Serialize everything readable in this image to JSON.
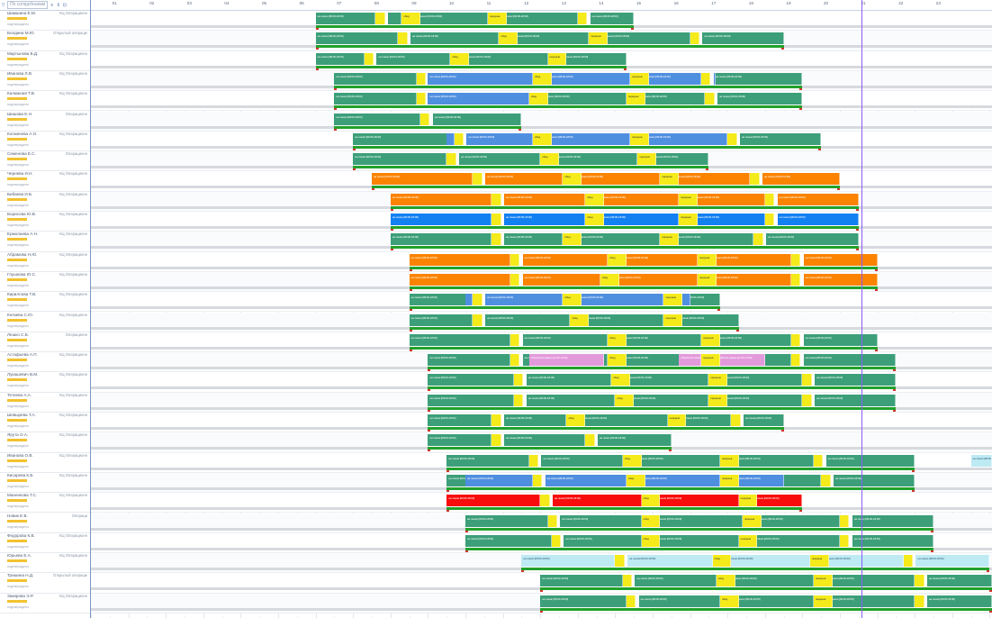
{
  "toolbar": {
    "filter_icon": "filter-icon",
    "group_select": "По сотрудникам",
    "buttons": [
      "x",
      "⇕",
      "⊡"
    ]
  },
  "timeline": {
    "hours": [
      "01",
      "02",
      "03",
      "04",
      "05",
      "06",
      "07",
      "08",
      "09",
      "10",
      "11",
      "12",
      "13",
      "14",
      "15",
      "16",
      "17",
      "18",
      "19",
      "20",
      "21",
      "22",
      "23"
    ]
  },
  "legend_colors": {
    "work_green": "#3c9f7a",
    "break_yellow": "#f5ea1a",
    "blue": "#4f8fe0",
    "orange": "#fb8300",
    "bright_blue": "#1380f2",
    "pink": "#e39adb",
    "red": "#f90c0c",
    "light_blue": "#bdeaf3",
    "schedule_green": "#22a12b",
    "now_line": "#8b5cf6"
  },
  "employees": [
    {
      "name": "Шамшина Е.М.",
      "dept": "КЦ Операционн",
      "note": "подтверждено"
    },
    {
      "name": "Болдина М.Ю.",
      "dept": "Открытый операционный отдел",
      "note": "подтверждено"
    },
    {
      "name": "Мартынова Б.Д.",
      "dept": "КЦ Операционн",
      "note": "подтверждено"
    },
    {
      "name": "Иванова Л.В.",
      "dept": "КЦ Операционн",
      "note": "подтверждено"
    },
    {
      "name": "Калюжная Т.В.",
      "dept": "КЦ Операционн",
      "note": "подтверждено"
    },
    {
      "name": "Шишова Е.Н.",
      "dept": "Операционн",
      "note": "подтверждено"
    },
    {
      "name": "Космачева А.О.",
      "dept": "КЦ Операционн",
      "note": "подтверждено"
    },
    {
      "name": "Семенова Е.С.",
      "dept": "Операционн",
      "note": "подтверждено"
    },
    {
      "name": "Чернева И.Н.",
      "dept": "КЦ Операционн",
      "note": "подтверждено"
    },
    {
      "name": "Бибаева И.Б.",
      "dept": "КЦ Операционн",
      "note": "подтверждено"
    },
    {
      "name": "Борисова Ю.В.",
      "dept": "КЦ Операционн",
      "note": "подтверждено"
    },
    {
      "name": "Ермолаева А.Н.",
      "dept": "КЦ Операционн",
      "note": "подтверждено"
    },
    {
      "name": "Абрамова Н.Ю.",
      "dept": "КЦ Операционн",
      "note": "подтверждено"
    },
    {
      "name": "Глушкова Ю.С.",
      "dept": "КЦ Операционн",
      "note": "подтверждено"
    },
    {
      "name": "Кириллова Т.В.",
      "dept": "КЦ Операционн",
      "note": "подтверждено"
    },
    {
      "name": "Князева С.Ю.",
      "dept": "КЦ Операционн",
      "note": "подтверждено"
    },
    {
      "name": "Лешко С.Б.",
      "dept": "Операционн",
      "note": "подтверждено"
    },
    {
      "name": "Астафьева А.П.",
      "dept": "КЦ Операционн",
      "note": "подтверждено"
    },
    {
      "name": "Лукашевич В.М.",
      "dept": "КЦ Операционн",
      "note": "подтверждено"
    },
    {
      "name": "Тетеева А.А.",
      "dept": "КЦ Операционн",
      "note": "подтверждено"
    },
    {
      "name": "Шевырева Т.А.",
      "dept": "КЦ Операционн",
      "note": "подтверждено"
    },
    {
      "name": "Ярута О.А.",
      "dept": "КЦ Операционн",
      "note": "подтверждено"
    },
    {
      "name": "Иванова О.В.",
      "dept": "КЦ Операционн",
      "note": "подтверждено"
    },
    {
      "name": "Кисарева К.Б.",
      "dept": "КЦ Операционн",
      "note": "подтверждено"
    },
    {
      "name": "Маненкова Т.С.",
      "dept": "КЦ Операционн",
      "note": "подтверждено"
    },
    {
      "name": "Новик Е.В.",
      "dept": "Операци",
      "note": "подтверждено"
    },
    {
      "name": "Федорова К.В.",
      "dept": "КЦ Операционн",
      "note": "подтверждено"
    },
    {
      "name": "Юрьева Е.А.",
      "dept": "КЦ Операционн",
      "note": "подтверждено"
    },
    {
      "name": "Тришина Н.Д.",
      "dept": "Открытый операционный отдел",
      "note": "подтверждено"
    },
    {
      "name": "Закирова Э.Р.",
      "dept": "КЦ Операционн",
      "note": "подтверждено"
    }
  ],
  "shifts": [
    {
      "row": 0,
      "start": 6.0,
      "end": 14.5,
      "c": "g",
      "b": [
        7.6,
        8.3,
        10.6,
        13.0
      ]
    },
    {
      "row": 1,
      "start": 6.0,
      "end": 18.5,
      "c": "g",
      "b": [
        8.2,
        10.9,
        13.3,
        16.0
      ]
    },
    {
      "row": 2,
      "start": 6.0,
      "end": 14.3,
      "c": "g",
      "b": [
        7.3,
        9.6,
        12.2
      ]
    },
    {
      "row": 3,
      "start": 6.5,
      "end": 19.0,
      "c": "g",
      "m": [
        [
          9.0,
          16.5,
          "b"
        ]
      ],
      "b": [
        8.7,
        11.8,
        14.4,
        16.3
      ]
    },
    {
      "row": 4,
      "start": 6.5,
      "end": 19.0,
      "c": "g",
      "m": [
        [
          9.0,
          11.9,
          "b"
        ]
      ],
      "b": [
        8.7,
        11.7,
        14.3,
        16.4
      ]
    },
    {
      "row": 5,
      "start": 6.5,
      "end": 11.5,
      "c": "g",
      "b": [
        8.8
      ]
    },
    {
      "row": 6,
      "start": 7.0,
      "end": 19.5,
      "c": "g",
      "m": [
        [
          9.5,
          17.0,
          "b"
        ]
      ],
      "b": [
        9.7,
        11.8,
        14.4,
        17.0
      ]
    },
    {
      "row": 7,
      "start": 7.0,
      "end": 16.5,
      "c": "g",
      "b": [
        9.5,
        12.0,
        14.6
      ]
    },
    {
      "row": 8,
      "start": 7.5,
      "end": 20.0,
      "c": "o",
      "b": [
        10.2,
        12.6,
        15.2,
        17.6
      ]
    },
    {
      "row": 9,
      "start": 8.0,
      "end": 20.5,
      "c": "o",
      "b": [
        10.7,
        13.2,
        15.7,
        18.0
      ]
    },
    {
      "row": 10,
      "start": 8.0,
      "end": 20.5,
      "c": "bb",
      "b": [
        10.7,
        13.2,
        15.7,
        18.0
      ]
    },
    {
      "row": 11,
      "start": 8.0,
      "end": 20.5,
      "c": "g",
      "b": [
        10.7,
        12.6,
        15.2,
        17.7
      ]
    },
    {
      "row": 12,
      "start": 8.5,
      "end": 21.0,
      "c": "o",
      "b": [
        11.2,
        13.8,
        16.2,
        18.7
      ]
    },
    {
      "row": 13,
      "start": 8.5,
      "end": 21.0,
      "c": "o",
      "b": [
        11.2,
        13.6,
        16.2,
        18.7
      ]
    },
    {
      "row": 14,
      "start": 8.5,
      "end": 16.8,
      "c": "g",
      "m": [
        [
          10.0,
          16.0,
          "b"
        ]
      ],
      "b": [
        10.2,
        12.6,
        15.3
      ]
    },
    {
      "row": 15,
      "start": 8.5,
      "end": 17.3,
      "c": "g",
      "b": [
        10.2,
        12.8,
        15.3
      ]
    },
    {
      "row": 16,
      "start": 8.5,
      "end": 21.0,
      "c": "g",
      "b": [
        11.2,
        13.8,
        16.3,
        18.7
      ]
    },
    {
      "row": 17,
      "start": 9.0,
      "end": 21.5,
      "c": "g",
      "m": [
        [
          11.7,
          13.7,
          "p"
        ],
        [
          15.7,
          18.0,
          "p"
        ]
      ],
      "b": [
        11.2,
        13.8,
        16.3,
        18.7
      ]
    },
    {
      "row": 18,
      "start": 9.0,
      "end": 21.5,
      "c": "g",
      "b": [
        11.3,
        13.9,
        16.5,
        19.0
      ]
    },
    {
      "row": 19,
      "start": 9.0,
      "end": 21.5,
      "c": "g",
      "b": [
        11.3,
        14.0,
        16.5,
        19.0
      ]
    },
    {
      "row": 20,
      "start": 9.0,
      "end": 18.5,
      "c": "g",
      "b": [
        10.7,
        12.7,
        15.4,
        17.1
      ]
    },
    {
      "row": 21,
      "start": 9.0,
      "end": 15.5,
      "c": "g",
      "b": [
        10.7,
        13.2
      ]
    },
    {
      "row": 22,
      "start": 9.5,
      "end": 22.0,
      "c": "g",
      "b": [
        11.7,
        14.2,
        16.8,
        19.3
      ],
      "lb": [
        23.5,
        25.0
      ]
    },
    {
      "row": 23,
      "start": 9.5,
      "end": 22.0,
      "c": "g",
      "m": [
        [
          10.0,
          18.5,
          "b"
        ]
      ],
      "b": [
        11.8,
        14.3,
        16.8,
        19.5
      ]
    },
    {
      "row": 24,
      "start": 9.5,
      "end": 19.0,
      "c": "r",
      "b": [
        12.0,
        14.7,
        17.3
      ]
    },
    {
      "row": 25,
      "start": 10.0,
      "end": 22.5,
      "c": "g",
      "b": [
        12.2,
        14.7,
        17.4,
        20.0
      ]
    },
    {
      "row": 26,
      "start": 10.0,
      "end": 22.5,
      "c": "g",
      "b": [
        12.3,
        14.7,
        17.3,
        20.0
      ]
    },
    {
      "row": 27,
      "start": 11.5,
      "end": 24.0,
      "c": "lb",
      "b": [
        14.0,
        16.6,
        19.2,
        21.7
      ]
    },
    {
      "row": 28,
      "start": 12.0,
      "end": 24.5,
      "c": "g",
      "b": [
        14.2,
        16.7,
        19.3,
        22.0
      ]
    },
    {
      "row": 29,
      "start": 12.0,
      "end": 24.5,
      "c": "g",
      "b": [
        14.3,
        16.8,
        19.3,
        22.0
      ]
    }
  ],
  "labels": {
    "work": "на линии [09:00-18:00]",
    "break": "перерыв",
    "lunch": "обед",
    "task": "Обработка заявок [11:00-13:00]"
  }
}
